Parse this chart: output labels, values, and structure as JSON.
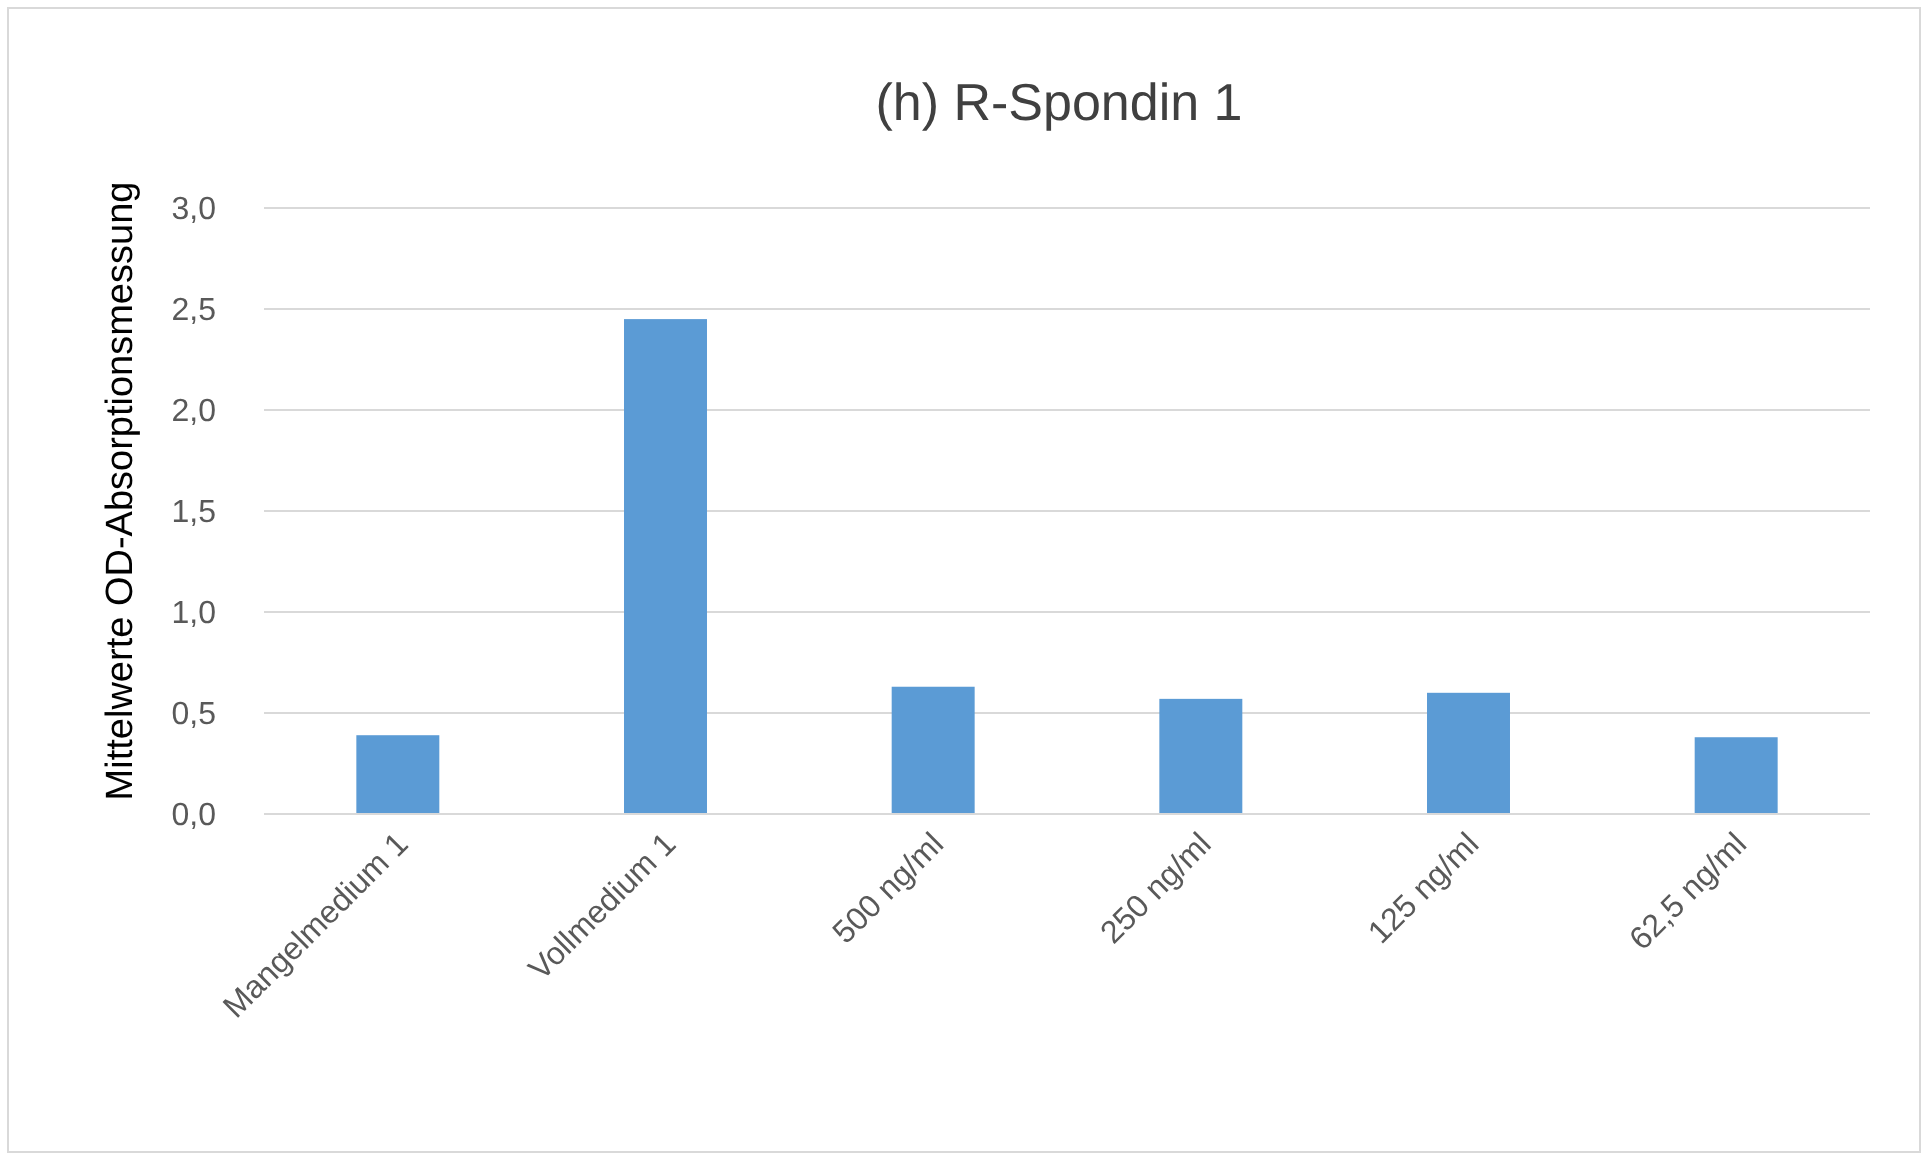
{
  "chart_data": {
    "type": "bar",
    "title": "(h) R-Spondin 1",
    "ylabel": "Mittelwerte OD-Absorptionsmessung",
    "categories": [
      "Mangelmedium 1",
      "Vollmedium 1",
      "500 ng/ml",
      "250 ng/ml",
      "125 ng/ml",
      "62,5 ng/ml"
    ],
    "values": [
      0.39,
      2.45,
      0.63,
      0.57,
      0.6,
      0.38
    ],
    "color": "#5b9bd5",
    "ylim": [
      0,
      3
    ],
    "yticks": [
      {
        "value": 0,
        "label": "0,0"
      },
      {
        "value": 0.5,
        "label": "0,5"
      },
      {
        "value": 1,
        "label": "1,0"
      },
      {
        "value": 1.5,
        "label": "1,5"
      },
      {
        "value": 2,
        "label": "2,0"
      },
      {
        "value": 2.5,
        "label": "2,5"
      },
      {
        "value": 3,
        "label": "3,0"
      }
    ],
    "grid": "y"
  }
}
